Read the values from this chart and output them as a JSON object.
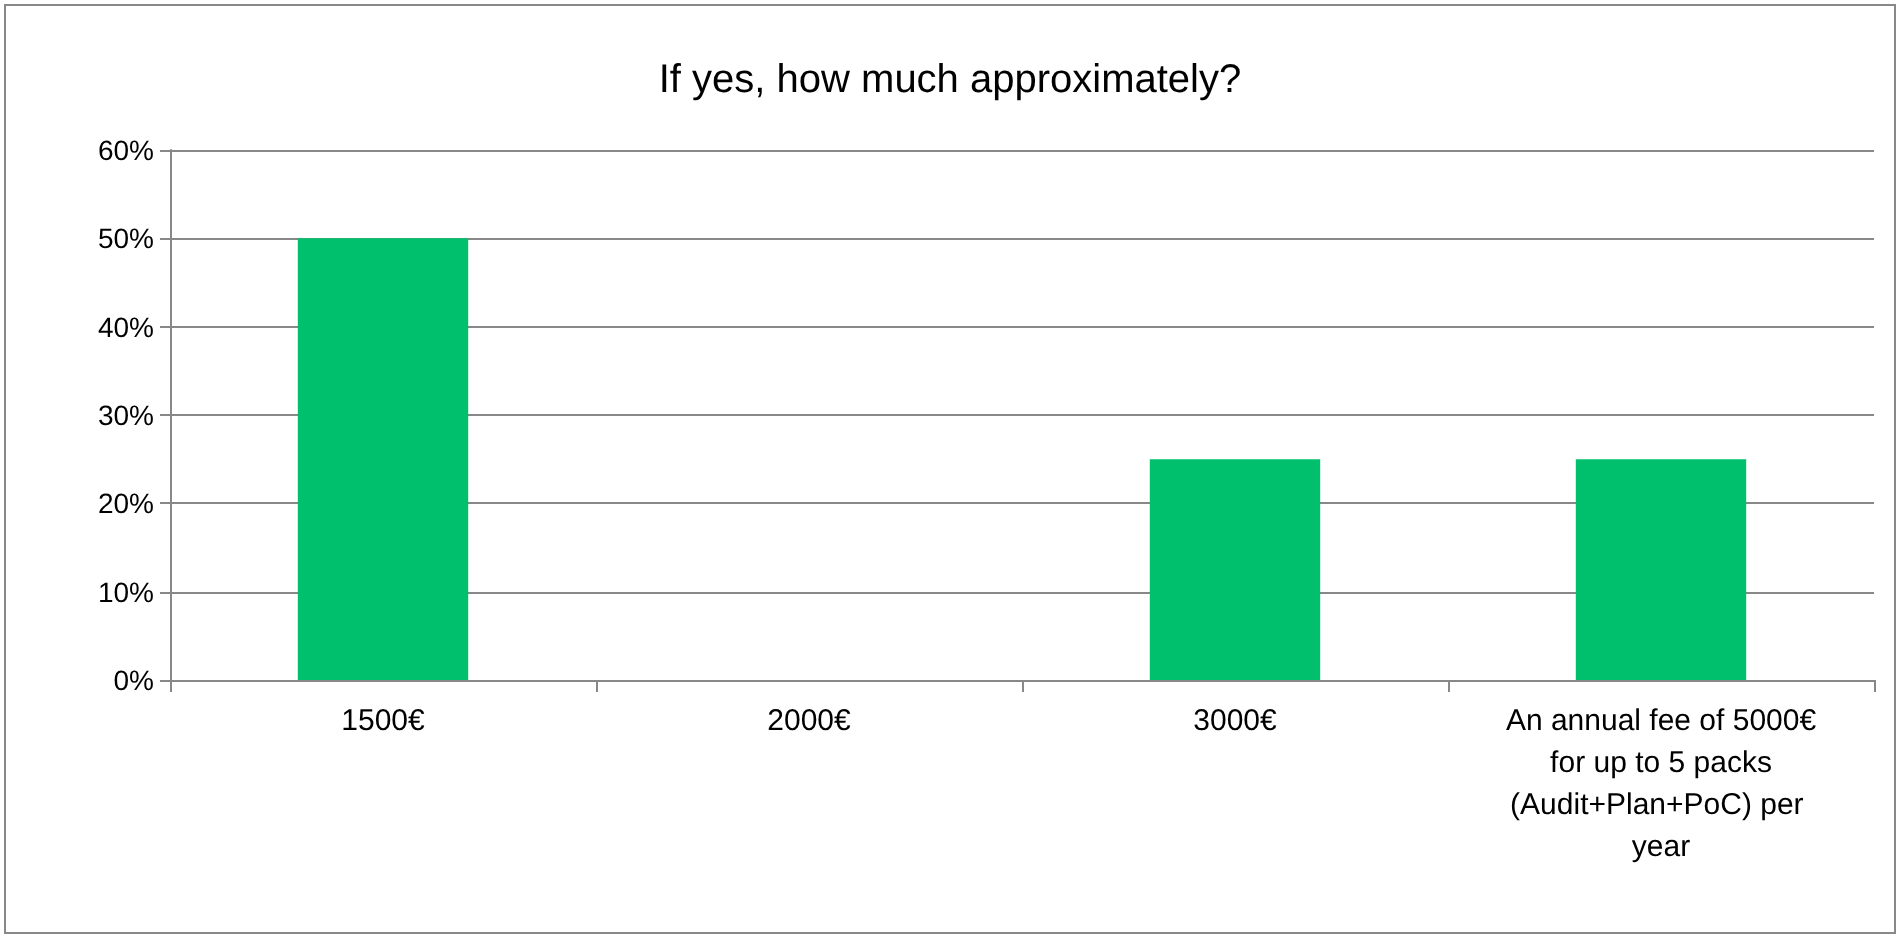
{
  "chart_data": {
    "type": "bar",
    "title": "If yes, how much approximately?",
    "categories": [
      "1500€",
      "2000€",
      "3000€",
      "An annual fee of 5000€ for up to 5 packs (Audit+Plan+PoC) per year"
    ],
    "values": [
      50,
      0,
      25,
      25
    ],
    "color": "#00c06e",
    "ylim": [
      0,
      60
    ],
    "yticks": [
      {
        "value": 0,
        "label": "0%"
      },
      {
        "value": 10,
        "label": "10%"
      },
      {
        "value": 20,
        "label": "20%"
      },
      {
        "value": 30,
        "label": "30%"
      },
      {
        "value": 40,
        "label": "40%"
      },
      {
        "value": 50,
        "label": "50%"
      },
      {
        "value": 60,
        "label": "60%"
      }
    ],
    "grid": "y"
  }
}
